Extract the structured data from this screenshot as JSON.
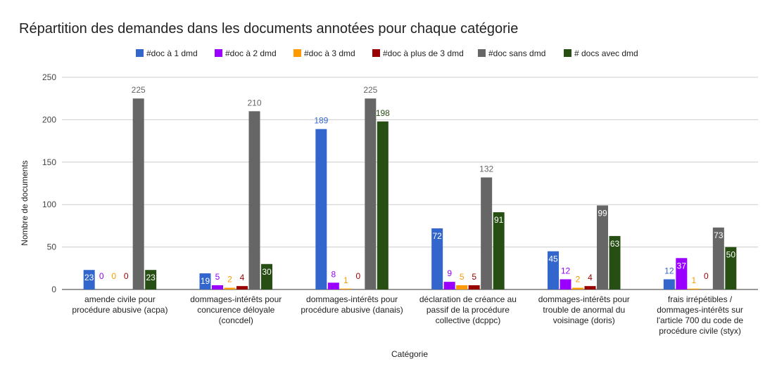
{
  "chart_data": {
    "type": "bar",
    "title": "Répartition des demandes dans les documents annotées pour chaque catégorie",
    "xlabel": "Catégorie",
    "ylabel": "Nombre de documents",
    "ylim": [
      0,
      250
    ],
    "yticks": [
      0,
      50,
      100,
      150,
      200,
      250
    ],
    "grid": true,
    "legend_position": "top",
    "categories": [
      [
        "amende civile pour",
        "procédure abusive (acpa)"
      ],
      [
        "dommages-intérêts pour",
        "concurence déloyale",
        "(concdel)"
      ],
      [
        "dommages-intérêts pour",
        "procédure abusive (danais)"
      ],
      [
        "déclaration de créance au",
        "passif de la procédure",
        "collective (dcppc)"
      ],
      [
        "dommages-intérêts pour",
        "trouble de anormal du",
        "voisinage (doris)"
      ],
      [
        "frais irrépétibles /",
        "dommages-intérêts sur",
        "l'article 700 du code de",
        "procédure civile (styx)"
      ]
    ],
    "series": [
      {
        "name": "#doc à 1 dmd",
        "color": "#3366cc",
        "values": [
          23,
          19,
          189,
          72,
          45,
          12
        ]
      },
      {
        "name": "#doc à 2 dmd",
        "color": "#9900ff",
        "values": [
          0,
          5,
          8,
          9,
          12,
          37
        ]
      },
      {
        "name": "#doc à 3 dmd",
        "color": "#ff9900",
        "values": [
          0,
          2,
          1,
          5,
          2,
          1
        ]
      },
      {
        "name": "#doc à plus de 3 dmd",
        "color": "#990000",
        "values": [
          0,
          4,
          0,
          5,
          4,
          0
        ]
      },
      {
        "name": "#doc sans dmd",
        "color": "#666666",
        "values": [
          225,
          210,
          225,
          132,
          99,
          73
        ]
      },
      {
        "name": "# docs avec dmd",
        "color": "#274e13",
        "values": [
          23,
          30,
          198,
          91,
          63,
          50
        ]
      }
    ],
    "label_inside_bar": [
      [
        true,
        false,
        false,
        false,
        false,
        true
      ],
      [
        true,
        false,
        false,
        false,
        false,
        true
      ],
      [
        false,
        false,
        false,
        false,
        false,
        false
      ],
      [
        true,
        false,
        false,
        false,
        false,
        true
      ],
      [
        true,
        false,
        false,
        false,
        true,
        true
      ],
      [
        false,
        true,
        false,
        false,
        true,
        true
      ]
    ]
  }
}
